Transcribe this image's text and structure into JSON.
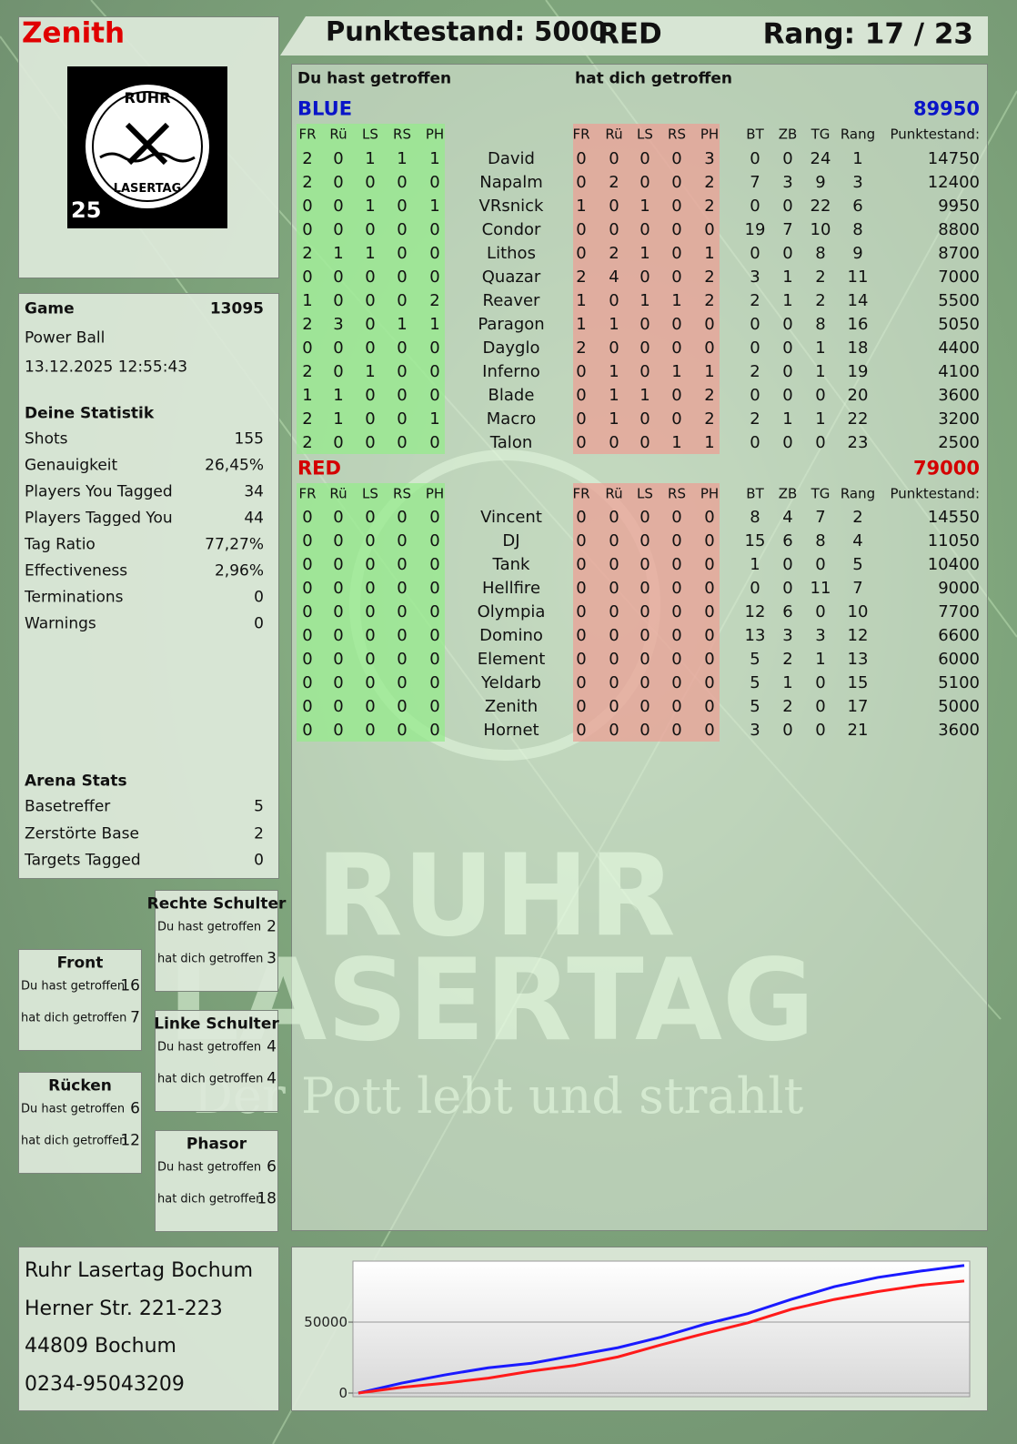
{
  "header": {
    "player": "Zenith",
    "score": "Punktestand: 5000",
    "team": "RED",
    "rank": "Rang: 17 / 23"
  },
  "logo": {
    "top": "RUHR",
    "bottom": "LASERTAG",
    "badge": "25"
  },
  "watermark": {
    "line1": "RUHR",
    "line2": "LASERTAG",
    "slogan": "Der Pott lebt und strahlt"
  },
  "hits": {
    "given": "Du hast getroffen",
    "taken": "hat dich getroffen"
  },
  "columns": {
    "zones": [
      "FR",
      "Rü",
      "LS",
      "RS",
      "PH"
    ],
    "stats": [
      "BT",
      "ZB",
      "TG",
      "Rang",
      "Punktestand:"
    ]
  },
  "teams": [
    {
      "name": "BLUE",
      "total": 89950,
      "color": "#0a14c8",
      "rows": [
        [
          "David",
          2,
          0,
          1,
          1,
          1,
          0,
          0,
          0,
          0,
          3,
          0,
          0,
          24,
          1,
          14750
        ],
        [
          "Napalm",
          2,
          0,
          0,
          0,
          0,
          0,
          2,
          0,
          0,
          2,
          7,
          3,
          9,
          3,
          12400
        ],
        [
          "VRsnick",
          0,
          0,
          1,
          0,
          1,
          1,
          0,
          1,
          0,
          2,
          0,
          0,
          22,
          6,
          9950
        ],
        [
          "Condor",
          0,
          0,
          0,
          0,
          0,
          0,
          0,
          0,
          0,
          0,
          19,
          7,
          10,
          8,
          8800
        ],
        [
          "Lithos",
          2,
          1,
          1,
          0,
          0,
          0,
          2,
          1,
          0,
          1,
          0,
          0,
          8,
          9,
          8700
        ],
        [
          "Quazar",
          0,
          0,
          0,
          0,
          0,
          2,
          4,
          0,
          0,
          2,
          3,
          1,
          2,
          11,
          7000
        ],
        [
          "Reaver",
          1,
          0,
          0,
          0,
          2,
          1,
          0,
          1,
          1,
          2,
          2,
          1,
          2,
          14,
          5500
        ],
        [
          "Paragon",
          2,
          3,
          0,
          1,
          1,
          1,
          1,
          0,
          0,
          0,
          0,
          0,
          8,
          16,
          5050
        ],
        [
          "Dayglo",
          0,
          0,
          0,
          0,
          0,
          2,
          0,
          0,
          0,
          0,
          0,
          0,
          1,
          18,
          4400
        ],
        [
          "Inferno",
          2,
          0,
          1,
          0,
          0,
          0,
          1,
          0,
          1,
          1,
          2,
          0,
          1,
          19,
          4100
        ],
        [
          "Blade",
          1,
          1,
          0,
          0,
          0,
          0,
          1,
          1,
          0,
          2,
          0,
          0,
          0,
          20,
          3600
        ],
        [
          "Macro",
          2,
          1,
          0,
          0,
          1,
          0,
          1,
          0,
          0,
          2,
          2,
          1,
          1,
          22,
          3200
        ],
        [
          "Talon",
          2,
          0,
          0,
          0,
          0,
          0,
          0,
          0,
          1,
          1,
          0,
          0,
          0,
          23,
          2500
        ]
      ]
    },
    {
      "name": "RED",
      "total": 79000,
      "color": "#d40000",
      "rows": [
        [
          "Vincent",
          0,
          0,
          0,
          0,
          0,
          0,
          0,
          0,
          0,
          0,
          8,
          4,
          7,
          2,
          14550
        ],
        [
          "DJ",
          0,
          0,
          0,
          0,
          0,
          0,
          0,
          0,
          0,
          0,
          15,
          6,
          8,
          4,
          11050
        ],
        [
          "Tank",
          0,
          0,
          0,
          0,
          0,
          0,
          0,
          0,
          0,
          0,
          1,
          0,
          0,
          5,
          10400
        ],
        [
          "Hellfire",
          0,
          0,
          0,
          0,
          0,
          0,
          0,
          0,
          0,
          0,
          0,
          0,
          11,
          7,
          9000
        ],
        [
          "Olympia",
          0,
          0,
          0,
          0,
          0,
          0,
          0,
          0,
          0,
          0,
          12,
          6,
          0,
          10,
          7700
        ],
        [
          "Domino",
          0,
          0,
          0,
          0,
          0,
          0,
          0,
          0,
          0,
          0,
          13,
          3,
          3,
          12,
          6600
        ],
        [
          "Element",
          0,
          0,
          0,
          0,
          0,
          0,
          0,
          0,
          0,
          0,
          5,
          2,
          1,
          13,
          6000
        ],
        [
          "Yeldarb",
          0,
          0,
          0,
          0,
          0,
          0,
          0,
          0,
          0,
          0,
          5,
          1,
          0,
          15,
          5100
        ],
        [
          "Zenith",
          0,
          0,
          0,
          0,
          0,
          0,
          0,
          0,
          0,
          0,
          5,
          2,
          0,
          17,
          5000
        ],
        [
          "Hornet",
          0,
          0,
          0,
          0,
          0,
          0,
          0,
          0,
          0,
          0,
          3,
          0,
          0,
          21,
          3600
        ]
      ]
    }
  ],
  "game": {
    "label": "Game",
    "id": 13095,
    "mode": "Power Ball",
    "date": "13.12.2025 12:55:43"
  },
  "stats": {
    "title": "Deine Statistik",
    "rows": [
      [
        "Shots",
        "155"
      ],
      [
        "Genauigkeit",
        "26,45%"
      ],
      [
        "Players You Tagged",
        "34"
      ],
      [
        "Players Tagged You",
        "44"
      ],
      [
        "Tag Ratio",
        "77,27%"
      ],
      [
        "Effectiveness",
        "2,96%"
      ],
      [
        "Terminations",
        "0"
      ],
      [
        "Warnings",
        "0"
      ]
    ]
  },
  "arena": {
    "title": "Arena Stats",
    "rows": [
      [
        "Basetreffer",
        "5"
      ],
      [
        "Zerstörte Base",
        "2"
      ],
      [
        "Targets Tagged",
        "0"
      ]
    ]
  },
  "zones": [
    {
      "name": "Rechte Schulter",
      "given": 2,
      "taken": 3
    },
    {
      "name": "Front",
      "given": 16,
      "taken": 7
    },
    {
      "name": "Linke Schulter",
      "given": 4,
      "taken": 4
    },
    {
      "name": "Rücken",
      "given": 6,
      "taken": 12
    },
    {
      "name": "Phasor",
      "given": 6,
      "taken": 18
    }
  ],
  "address": [
    "Ruhr Lasertag Bochum",
    "Herner Str. 221-223",
    "44809 Bochum",
    "0234-95043209"
  ],
  "chart_data": {
    "type": "line",
    "ylim": [
      0,
      93000
    ],
    "yticks": [
      0,
      50000
    ],
    "grid": true,
    "series": [
      {
        "color": "#1a1aff",
        "values": [
          0,
          7000,
          12800,
          17800,
          21000,
          26500,
          32000,
          39500,
          48500,
          56000,
          66000,
          75000,
          81500,
          86000,
          89950
        ]
      },
      {
        "color": "#ff1a1a",
        "values": [
          0,
          4000,
          7000,
          10500,
          15500,
          19500,
          25500,
          34000,
          42000,
          49500,
          59000,
          66000,
          71500,
          76000,
          79000
        ]
      }
    ]
  }
}
